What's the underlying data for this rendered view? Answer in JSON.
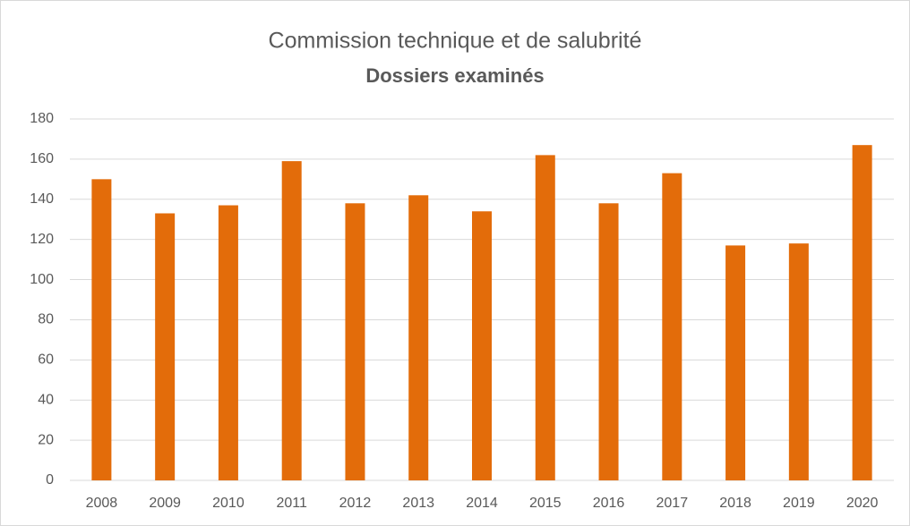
{
  "chart_data": {
    "type": "bar",
    "title": "Commission technique et de salubrité",
    "subtitle": "Dossiers examinés",
    "categories": [
      "2008",
      "2009",
      "2010",
      "2011",
      "2012",
      "2013",
      "2014",
      "2015",
      "2016",
      "2017",
      "2018",
      "2019",
      "2020"
    ],
    "values": [
      150,
      133,
      137,
      159,
      138,
      142,
      134,
      162,
      138,
      153,
      117,
      118,
      167
    ],
    "color": "#e36c0a",
    "ylim": [
      0,
      180
    ],
    "yticks": [
      0,
      20,
      40,
      60,
      80,
      100,
      120,
      140,
      160,
      180
    ],
    "grid": true
  }
}
